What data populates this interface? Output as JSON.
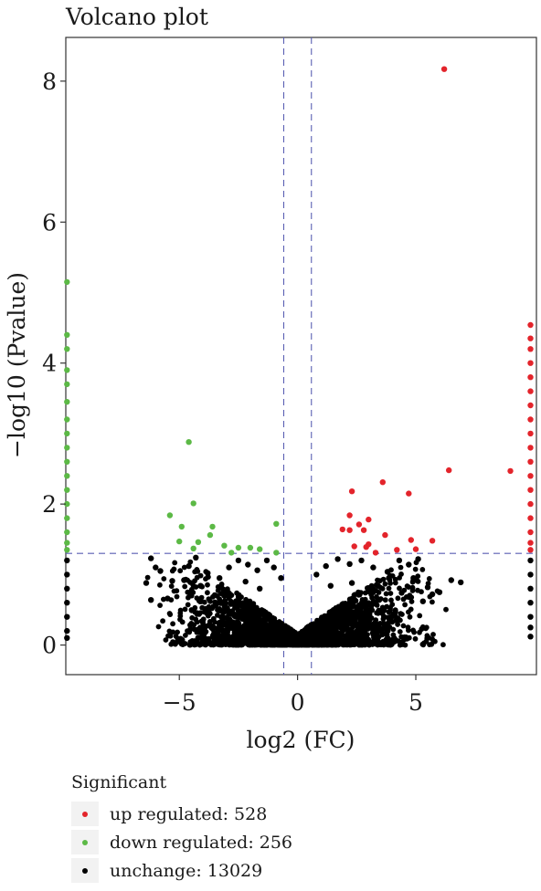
{
  "chart_data": {
    "type": "scatter",
    "title": "Volcano plot",
    "xlabel": "log2 (FC)",
    "ylabel": "−log10 (Pvalue)",
    "xlim": [
      -9.8,
      10.1
    ],
    "ylim": [
      -0.42,
      8.62
    ],
    "xticks": [
      -5,
      0,
      5
    ],
    "yticks": [
      0,
      2,
      4,
      6,
      8
    ],
    "xtick_labels": [
      "−5",
      "0",
      "5"
    ],
    "ytick_labels": [
      "0",
      "2",
      "4",
      "6",
      "8"
    ],
    "grid": false,
    "fc_thresholds": [
      -0.585,
      0.585
    ],
    "pvalue_threshold": 1.3,
    "colors": {
      "up": "#e3242b",
      "down": "#5cb946",
      "unchange": "#000000",
      "threshold": "#5a5fb3"
    },
    "legend": {
      "title": "Significant",
      "position": "bottom-left",
      "items": [
        {
          "key": "up",
          "label": "up regulated: 528"
        },
        {
          "key": "down",
          "label": "down regulated: 256"
        },
        {
          "key": "unchange",
          "label": "unchange: 13029"
        }
      ]
    },
    "series": [
      {
        "name": "up regulated",
        "key": "up",
        "points": [
          [
            6.2,
            8.17
          ],
          [
            2.3,
            2.18
          ],
          [
            3.6,
            2.31
          ],
          [
            4.7,
            2.15
          ],
          [
            6.4,
            2.48
          ],
          [
            9.0,
            2.47
          ],
          [
            2.2,
            1.84
          ],
          [
            1.9,
            1.64
          ],
          [
            2.2,
            1.63
          ],
          [
            2.6,
            1.71
          ],
          [
            2.8,
            1.63
          ],
          [
            3.0,
            1.78
          ],
          [
            3.0,
            1.43
          ],
          [
            2.9,
            1.39
          ],
          [
            3.7,
            1.56
          ],
          [
            4.8,
            1.49
          ],
          [
            5.7,
            1.48
          ],
          [
            4.2,
            1.35
          ],
          [
            5.0,
            1.36
          ],
          [
            2.4,
            1.4
          ],
          [
            3.3,
            1.31
          ],
          [
            9.85,
            4.54
          ],
          [
            9.85,
            4.35
          ],
          [
            9.85,
            4.2
          ],
          [
            9.85,
            4.0
          ],
          [
            9.85,
            3.8
          ],
          [
            9.85,
            3.6
          ],
          [
            9.85,
            3.4
          ],
          [
            9.85,
            3.2
          ],
          [
            9.85,
            3.0
          ],
          [
            9.85,
            2.8
          ],
          [
            9.85,
            2.6
          ],
          [
            9.85,
            2.4
          ],
          [
            9.85,
            2.2
          ],
          [
            9.85,
            2.0
          ],
          [
            9.85,
            1.8
          ],
          [
            9.85,
            1.6
          ],
          [
            9.85,
            1.45
          ],
          [
            9.85,
            1.35
          ]
        ]
      },
      {
        "name": "down regulated",
        "key": "down",
        "points": [
          [
            -4.6,
            2.88
          ],
          [
            -4.4,
            2.01
          ],
          [
            -5.4,
            1.84
          ],
          [
            -4.9,
            1.68
          ],
          [
            -3.6,
            1.68
          ],
          [
            -3.7,
            1.56
          ],
          [
            -4.2,
            1.46
          ],
          [
            -5.0,
            1.47
          ],
          [
            -4.4,
            1.37
          ],
          [
            -3.1,
            1.41
          ],
          [
            -2.5,
            1.38
          ],
          [
            -2.0,
            1.38
          ],
          [
            -1.6,
            1.36
          ],
          [
            -0.9,
            1.72
          ],
          [
            -0.9,
            1.31
          ],
          [
            -2.8,
            1.31
          ],
          [
            -9.75,
            5.15
          ],
          [
            -9.75,
            4.4
          ],
          [
            -9.75,
            4.2
          ],
          [
            -9.75,
            3.9
          ],
          [
            -9.75,
            3.7
          ],
          [
            -9.75,
            3.45
          ],
          [
            -9.75,
            3.2
          ],
          [
            -9.75,
            3.0
          ],
          [
            -9.75,
            2.8
          ],
          [
            -9.75,
            2.6
          ],
          [
            -9.75,
            2.4
          ],
          [
            -9.75,
            2.2
          ],
          [
            -9.75,
            2.0
          ],
          [
            -9.75,
            1.8
          ],
          [
            -9.75,
            1.6
          ],
          [
            -9.75,
            1.45
          ],
          [
            -9.75,
            1.35
          ]
        ]
      },
      {
        "name": "unchange",
        "key": "unchange",
        "points": [
          [
            -6.2,
            1.23
          ],
          [
            -6.0,
            1.1
          ],
          [
            -5.8,
            1.05
          ],
          [
            -6.4,
            0.88
          ],
          [
            -5.3,
            0.91
          ],
          [
            -6.2,
            0.64
          ],
          [
            -5.5,
            0.66
          ],
          [
            -4.8,
            0.92
          ],
          [
            -4.6,
            1.12
          ],
          [
            -4.3,
            1.24
          ],
          [
            -3.8,
            1.02
          ],
          [
            -4.1,
            0.84
          ],
          [
            -3.3,
            0.95
          ],
          [
            -2.9,
            1.1
          ],
          [
            -2.5,
            1.2
          ],
          [
            -2.1,
            1.14
          ],
          [
            -1.7,
            1.06
          ],
          [
            -1.3,
            1.2
          ],
          [
            -1.0,
            1.1
          ],
          [
            -0.7,
            0.95
          ],
          [
            -2.2,
            0.9
          ],
          [
            -3.0,
            0.78
          ],
          [
            -1.6,
            0.8
          ],
          [
            0.8,
            1.0
          ],
          [
            1.2,
            1.12
          ],
          [
            1.7,
            1.22
          ],
          [
            2.2,
            1.15
          ],
          [
            2.7,
            1.2
          ],
          [
            3.2,
            1.1
          ],
          [
            3.8,
            1.04
          ],
          [
            4.3,
            1.2
          ],
          [
            4.7,
            1.14
          ],
          [
            5.1,
            1.22
          ],
          [
            4.9,
            0.95
          ],
          [
            5.5,
            0.82
          ],
          [
            5.7,
            0.72
          ],
          [
            6.0,
            0.75
          ],
          [
            6.5,
            0.92
          ],
          [
            6.9,
            0.89
          ],
          [
            5.3,
            0.62
          ],
          [
            4.4,
            0.74
          ],
          [
            3.4,
            0.84
          ],
          [
            2.3,
            0.88
          ],
          [
            1.4,
            0.84
          ],
          [
            -9.75,
            1.2
          ],
          [
            -9.75,
            1.0
          ],
          [
            -9.75,
            0.8
          ],
          [
            -9.75,
            0.6
          ],
          [
            -9.75,
            0.4
          ],
          [
            -9.75,
            0.2
          ],
          [
            -9.75,
            0.1
          ],
          [
            9.85,
            1.2
          ],
          [
            9.85,
            1.0
          ],
          [
            9.85,
            0.8
          ],
          [
            9.85,
            0.6
          ],
          [
            9.85,
            0.4
          ],
          [
            9.85,
            0.25
          ],
          [
            9.85,
            0.12
          ]
        ]
      }
    ]
  }
}
